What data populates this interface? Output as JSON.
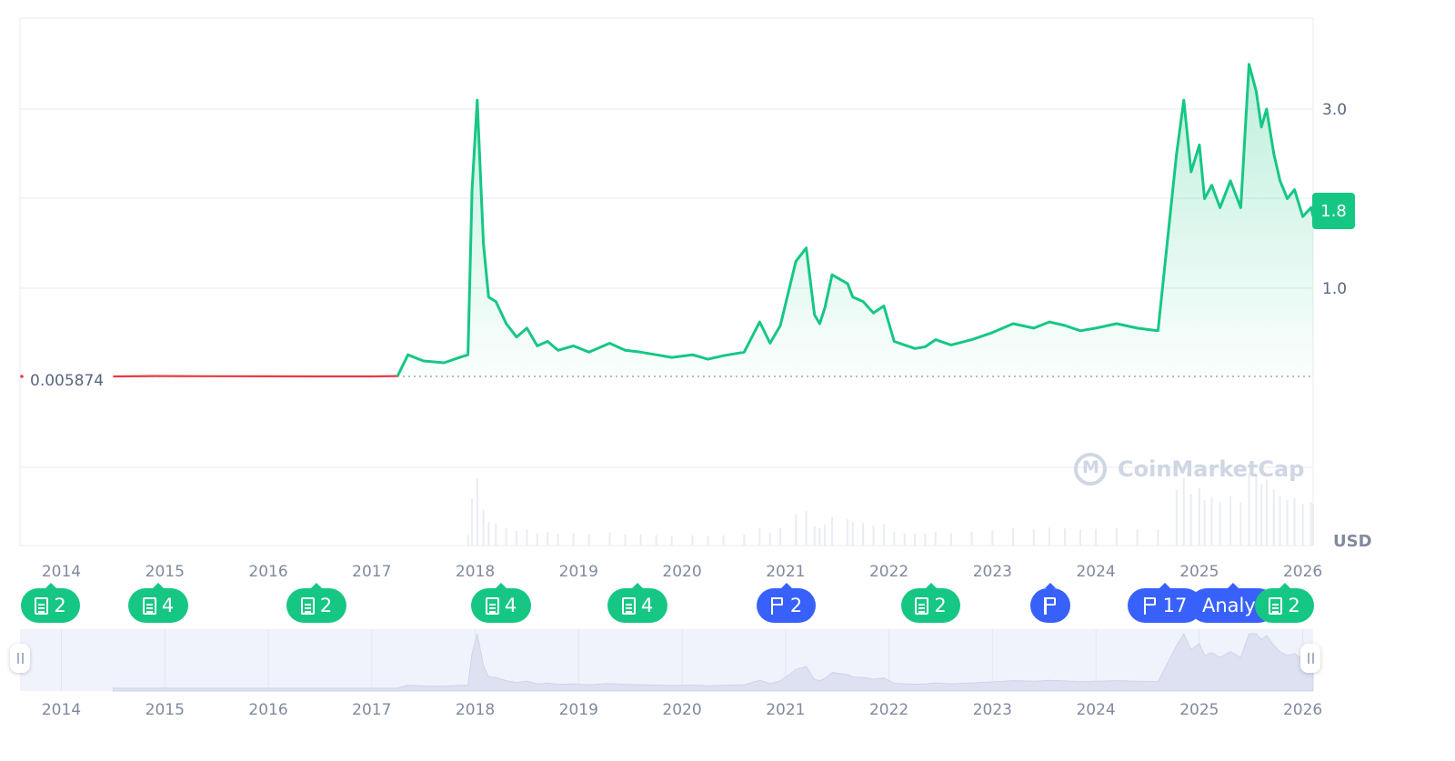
{
  "chart_data": {
    "type": "line",
    "currency": "USD",
    "y_ticks": [
      "3.0",
      "1.0"
    ],
    "y_tick_values": [
      3.0,
      1.0
    ],
    "baseline_label": "0.005874",
    "baseline_value": 0.005874,
    "current_price_label": "1.8",
    "current_price": 1.8,
    "x_tick_labels": [
      "2014",
      "2015",
      "2016",
      "2017",
      "2018",
      "2019",
      "2020",
      "2021",
      "2022",
      "2023",
      "2024",
      "2025",
      "2026"
    ],
    "x_range": [
      "2013.6",
      "2026.1"
    ],
    "series": [
      {
        "x": [
          2014.5,
          2014.9,
          2015.5,
          2016.0,
          2016.5,
          2017.0,
          2017.25,
          2017.35,
          2017.5,
          2017.7,
          2017.85,
          2017.93,
          2017.97,
          2018.02,
          2018.08,
          2018.13,
          2018.2,
          2018.3,
          2018.4,
          2018.5,
          2018.6,
          2018.7,
          2018.8,
          2018.95,
          2019.1,
          2019.3,
          2019.45,
          2019.6,
          2019.75,
          2019.9,
          2020.1,
          2020.25,
          2020.4,
          2020.6,
          2020.75,
          2020.85,
          2020.95,
          2021.1,
          2021.2,
          2021.28,
          2021.33,
          2021.38,
          2021.45,
          2021.6,
          2021.65,
          2021.75,
          2021.85,
          2021.95,
          2022.05,
          2022.15,
          2022.25,
          2022.35,
          2022.45,
          2022.6,
          2022.8,
          2023.0,
          2023.2,
          2023.4,
          2023.55,
          2023.7,
          2023.85,
          2024.0,
          2024.2,
          2024.4,
          2024.6,
          2024.78,
          2024.85,
          2024.92,
          2025.0,
          2025.05,
          2025.12,
          2025.2,
          2025.3,
          2025.4,
          2025.48,
          2025.55,
          2025.6,
          2025.65,
          2025.72,
          2025.78,
          2025.85,
          2025.92,
          2026.0,
          2026.08,
          2026.1
        ],
        "y": [
          0.006,
          0.01,
          0.008,
          0.007,
          0.006,
          0.006,
          0.01,
          0.25,
          0.18,
          0.16,
          0.22,
          0.25,
          2.1,
          3.1,
          1.5,
          0.9,
          0.85,
          0.6,
          0.45,
          0.55,
          0.35,
          0.4,
          0.3,
          0.35,
          0.28,
          0.38,
          0.3,
          0.28,
          0.25,
          0.22,
          0.25,
          0.2,
          0.24,
          0.28,
          0.62,
          0.38,
          0.58,
          1.3,
          1.45,
          0.7,
          0.6,
          0.78,
          1.15,
          1.05,
          0.9,
          0.85,
          0.72,
          0.8,
          0.4,
          0.36,
          0.32,
          0.34,
          0.42,
          0.36,
          0.42,
          0.5,
          0.6,
          0.55,
          0.62,
          0.58,
          0.52,
          0.55,
          0.6,
          0.55,
          0.52,
          2.5,
          3.1,
          2.3,
          2.6,
          2.0,
          2.15,
          1.9,
          2.2,
          1.9,
          3.5,
          3.2,
          2.8,
          3.0,
          2.5,
          2.2,
          2.0,
          2.1,
          1.8,
          1.9,
          1.8
        ]
      }
    ]
  },
  "events": [
    {
      "label": "2",
      "icon": "doc-icon",
      "kind": "green"
    },
    {
      "label": "4",
      "icon": "doc-icon",
      "kind": "green"
    },
    {
      "label": "2",
      "icon": "doc-icon",
      "kind": "green"
    },
    {
      "label": "4",
      "icon": "doc-icon",
      "kind": "green"
    },
    {
      "label": "4",
      "icon": "doc-icon",
      "kind": "green"
    },
    {
      "label": "2",
      "icon": "flag-icon",
      "kind": "blue"
    },
    {
      "label": "2",
      "icon": "doc-icon",
      "kind": "green"
    },
    {
      "label": "",
      "icon": "flag-icon",
      "kind": "blue"
    },
    {
      "label": "17",
      "icon": "flag-icon",
      "kind": "blue"
    },
    {
      "label": "Analy",
      "icon": "",
      "kind": "blue"
    },
    {
      "label": "2",
      "icon": "doc-icon",
      "kind": "green"
    }
  ],
  "watermark": "CoinMarketCap",
  "colors": {
    "up": "#16c784",
    "down": "#ea3943",
    "accent_blue": "#3861fb",
    "grid": "#eff2f5",
    "axis_text": "#58667e"
  }
}
